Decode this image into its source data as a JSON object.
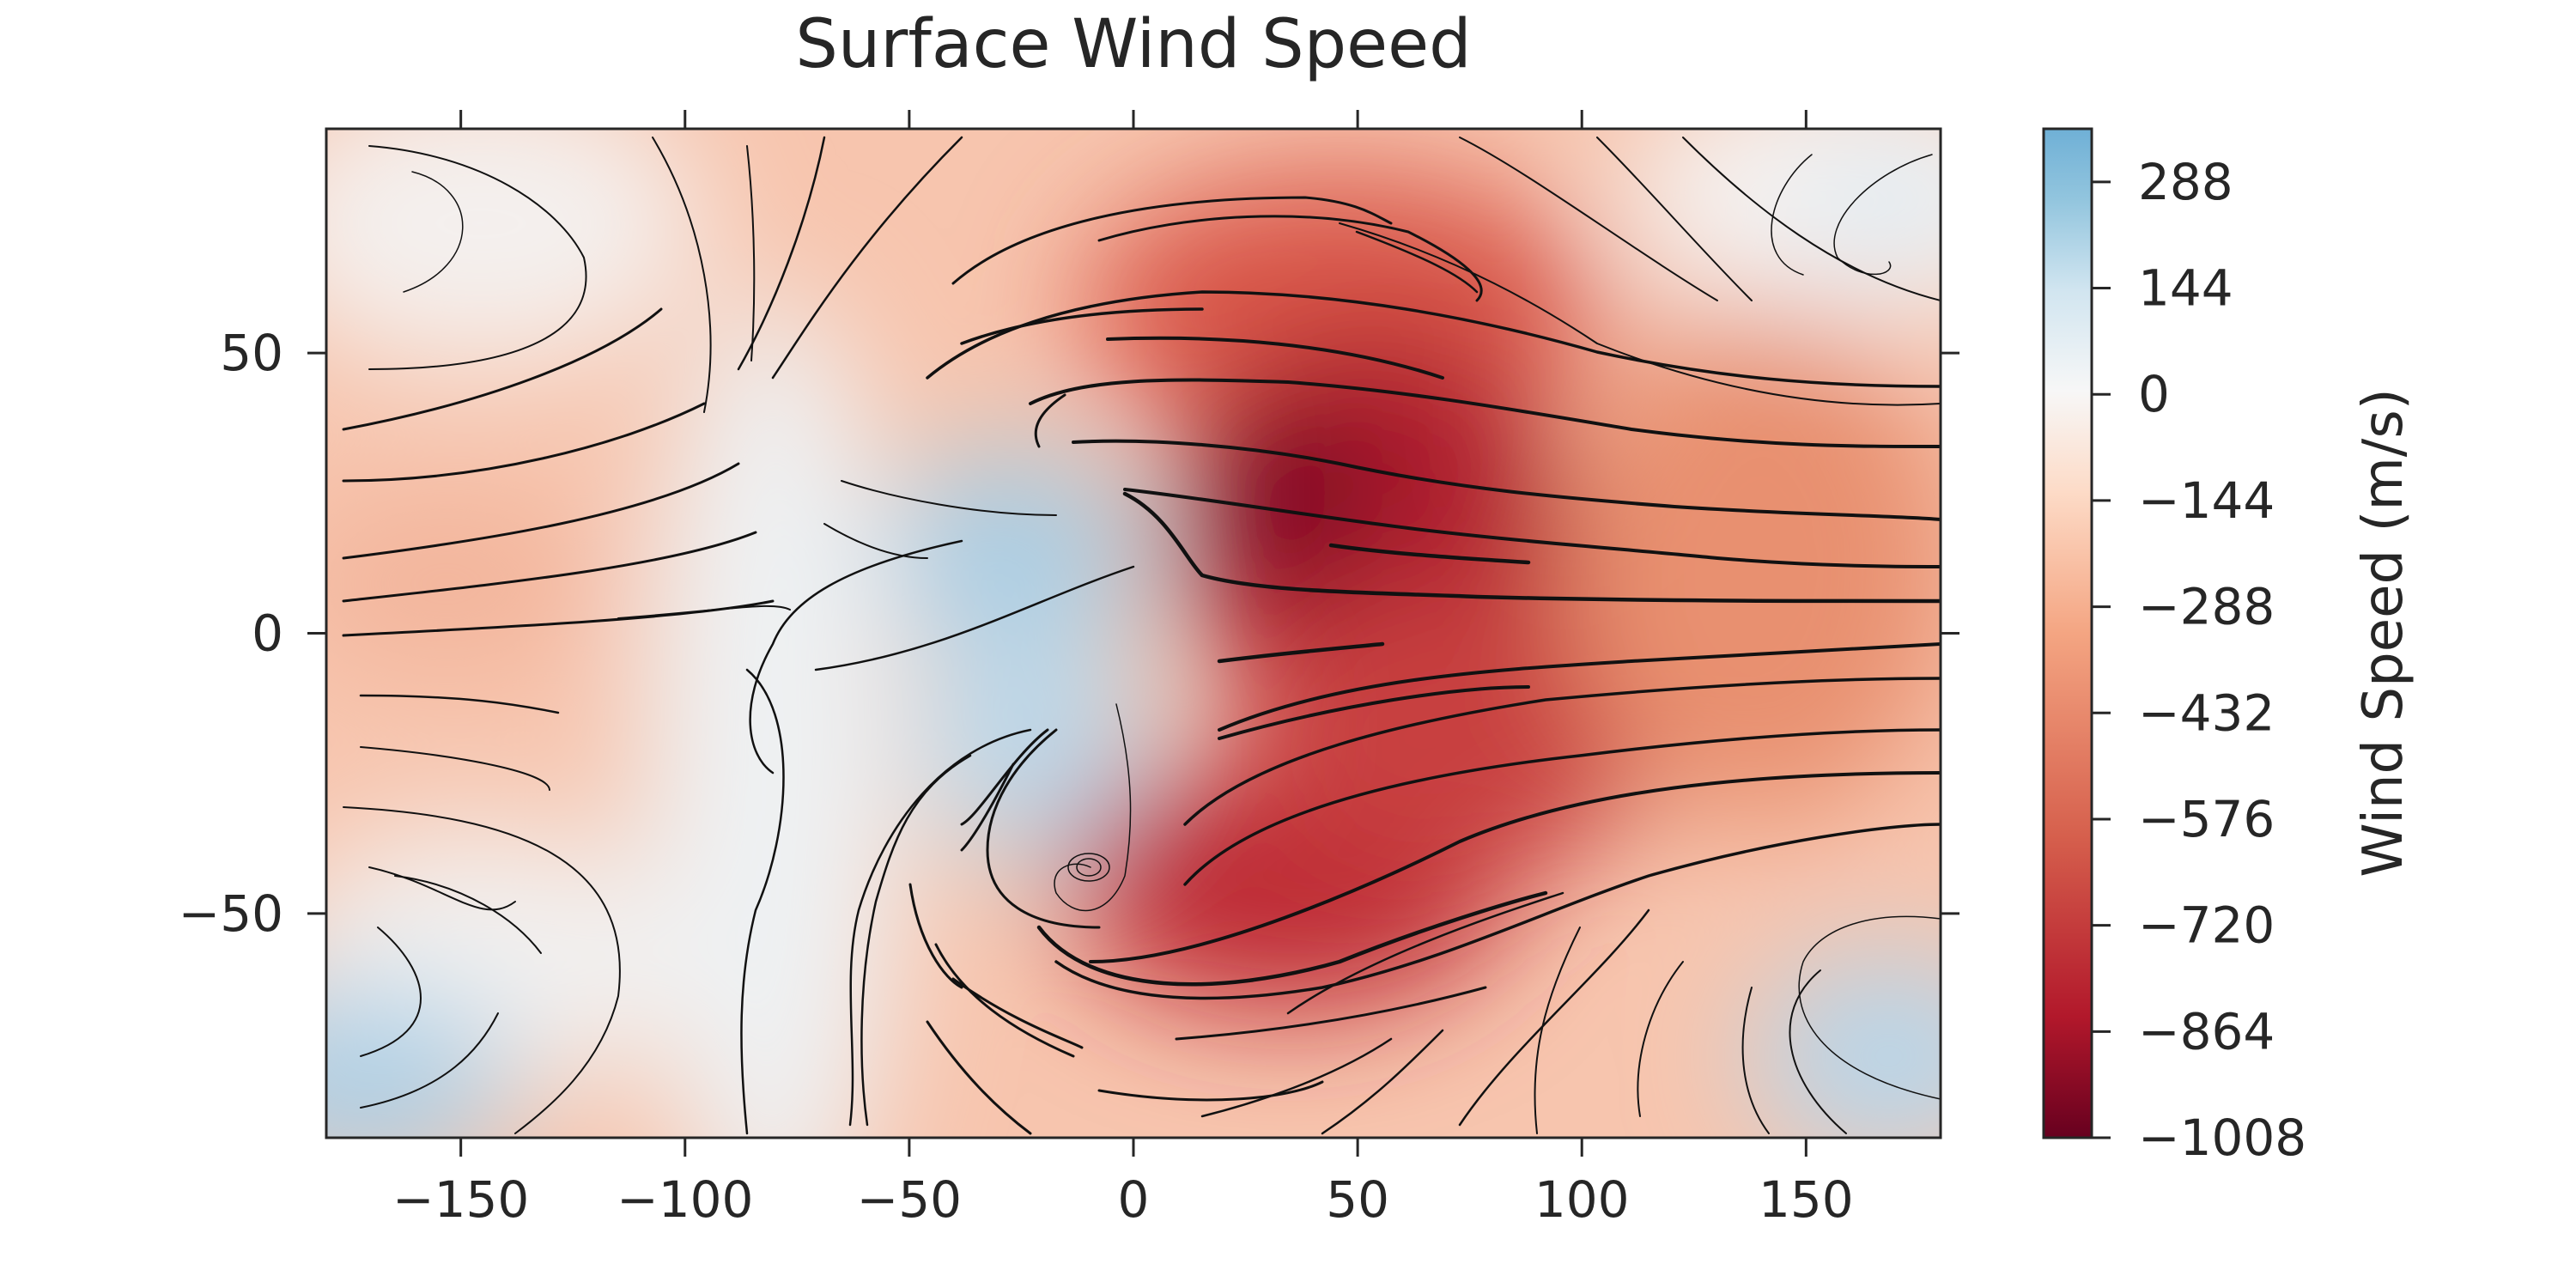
{
  "chart_data": {
    "type": "heatmap",
    "title": "Surface Wind Speed",
    "xlabel": "",
    "ylabel": "",
    "xlim": [
      -180,
      180
    ],
    "ylim": [
      -90,
      90
    ],
    "x_ticks": [
      -150,
      -100,
      -50,
      0,
      50,
      100,
      150
    ],
    "y_ticks": [
      50,
      0,
      -50
    ],
    "colorbar": {
      "label": "Wind Speed (m/s)",
      "range": [
        -1008,
        360
      ],
      "ticks": [
        288,
        144,
        0,
        -144,
        -288,
        -432,
        -576,
        -720,
        -864,
        -1008
      ],
      "colormap": [
        "#67001f",
        "#b2182b",
        "#d6604d",
        "#f4a582",
        "#fddbc7",
        "#f7f7f7",
        "#d1e5f0",
        "#92c5de",
        "#4393c3"
      ]
    },
    "field_features": [
      {
        "lon": 30,
        "lat": 20,
        "value": -1008
      },
      {
        "lon": 40,
        "lat": -60,
        "value": -900
      },
      {
        "lon": -20,
        "lat": 20,
        "value": 200
      },
      {
        "lon": -30,
        "lat": -30,
        "value": 220
      },
      {
        "lon": 165,
        "lat": 65,
        "value": 160
      },
      {
        "lon": 165,
        "lat": -70,
        "value": 260
      }
    ],
    "streamlines": "present",
    "grid": false
  }
}
